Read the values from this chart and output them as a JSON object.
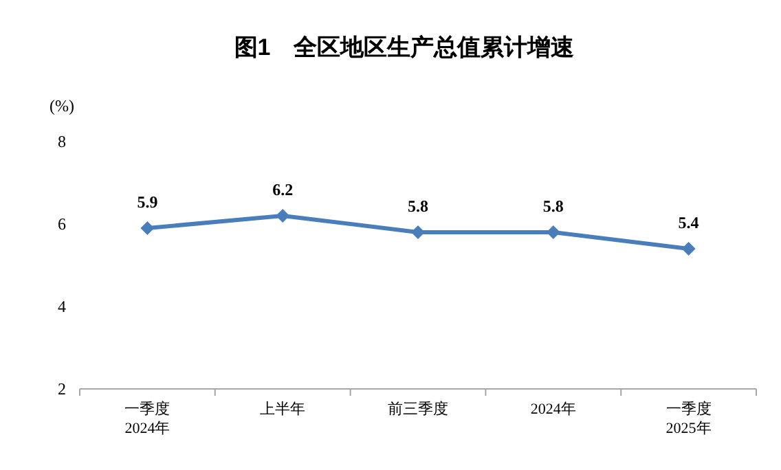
{
  "chart_data": {
    "type": "line",
    "title": "图1　全区地区生产总值累计增速",
    "ylabel": "(%)",
    "categories": [
      "一季度\n2024年",
      "上半年",
      "前三季度",
      "2024年",
      "一季度\n2025年"
    ],
    "series": [
      {
        "color": "#4a7ebb",
        "values": [
          5.9,
          6.2,
          5.8,
          5.8,
          5.4
        ]
      }
    ],
    "ylim": [
      2,
      8
    ],
    "yticks": [
      2,
      4,
      6,
      8
    ],
    "grid": false,
    "marker": "diamond",
    "line_style": "solid",
    "data_labels": true
  }
}
